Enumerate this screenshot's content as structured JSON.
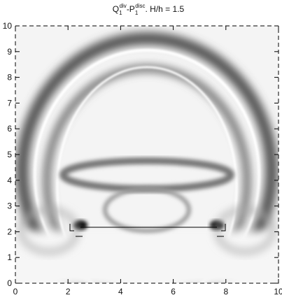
{
  "chart_data": {
    "type": "heatmap",
    "title": [
      "Q",
      "1",
      "div",
      "-P",
      "1",
      "disc",
      ". H/h = 1.5"
    ],
    "xlim": [
      0,
      10
    ],
    "ylim": [
      0,
      10
    ],
    "xticks": [
      0,
      2,
      4,
      6,
      8,
      10
    ],
    "yticks": [
      0,
      1,
      2,
      3,
      4,
      5,
      6,
      7,
      8,
      9,
      10
    ]
  }
}
